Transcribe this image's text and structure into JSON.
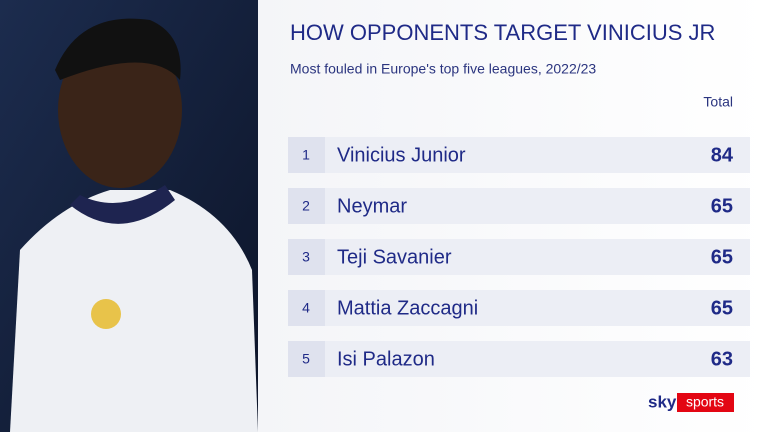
{
  "header": {
    "title": "HOW OPPONENTS TARGET VINICIUS JR",
    "subtitle": "Most fouled in Europe's top five leagues, 2022/23"
  },
  "table": {
    "column_header": "Total",
    "rows": [
      {
        "rank": 1,
        "name": "Vinicius Junior",
        "total": 84
      },
      {
        "rank": 2,
        "name": "Neymar",
        "total": 65
      },
      {
        "rank": 3,
        "name": "Teji Savanier",
        "total": 65
      },
      {
        "rank": 4,
        "name": "Mattia Zaccagni",
        "total": 65
      },
      {
        "rank": 5,
        "name": "Isi Palazon",
        "total": 63
      }
    ]
  },
  "logo": {
    "brand": "sky",
    "product": "sports"
  }
}
